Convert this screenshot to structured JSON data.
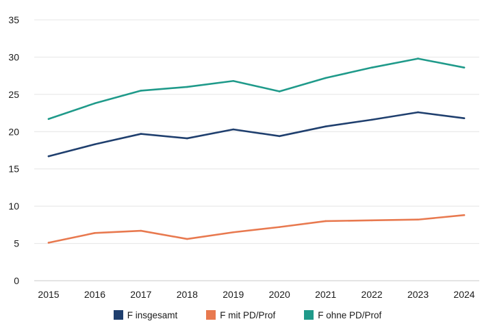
{
  "chart_data": {
    "type": "line",
    "title": "",
    "xlabel": "",
    "ylabel": "",
    "x": [
      2015,
      2016,
      2017,
      2018,
      2019,
      2020,
      2021,
      2022,
      2023,
      2024
    ],
    "ylim": [
      0,
      35
    ],
    "yticks": [
      0,
      5,
      10,
      15,
      20,
      25,
      30,
      35
    ],
    "grid": true,
    "legend_position": "bottom",
    "series": [
      {
        "name": "F insgesamt",
        "color": "#1f3f6e",
        "values": [
          16.7,
          18.3,
          19.7,
          19.1,
          20.3,
          19.4,
          20.7,
          21.6,
          22.6,
          21.8
        ]
      },
      {
        "name": "F mit PD/Prof",
        "color": "#e8794f",
        "values": [
          5.1,
          6.4,
          6.7,
          5.6,
          6.5,
          7.2,
          8.0,
          8.1,
          8.2,
          8.8
        ]
      },
      {
        "name": "F ohne PD/Prof",
        "color": "#1f9a8a",
        "values": [
          21.7,
          23.8,
          25.5,
          26.0,
          26.8,
          25.4,
          27.2,
          28.6,
          29.8,
          28.6
        ]
      }
    ]
  }
}
